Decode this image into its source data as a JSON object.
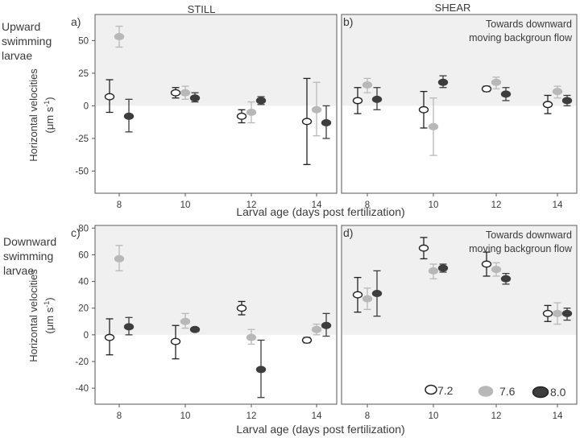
{
  "column_titles": {
    "still": "STILL",
    "shear": "SHEAR"
  },
  "row_labels": {
    "upward": [
      "Upward",
      "swimming",
      "larvae"
    ],
    "downward": [
      "Downward",
      "swimming",
      "larvae"
    ]
  },
  "ylabel": "Horizontal velocities",
  "ylabel_unit": {
    "mu": "(μm s",
    "sup": "-1",
    "close": ")"
  },
  "xlabel": "Larval age (days post fertilization)",
  "annotation": [
    "Towards downward",
    "moving backgroun flow"
  ],
  "legend": [
    {
      "label": "7.2",
      "fill": "#ffffff",
      "stroke": "#222222"
    },
    {
      "label": "7.6",
      "fill": "#b8b8b8",
      "stroke": "#b8b8b8"
    },
    {
      "label": "8.0",
      "fill": "#3d3d3d",
      "stroke": "#222222"
    }
  ],
  "colors": {
    "7.2": "#222222",
    "7.6": "#b8b8b8",
    "8.0": "#3d3d3d",
    "shade": "#f0f0f0",
    "frame": "#555555"
  },
  "chart_data": [
    {
      "panel": "a)",
      "type": "scatter",
      "title": "STILL",
      "group": "Upward swimming larvae",
      "xlabel": "",
      "ylabel": "Horizontal velocities (μm s-1)",
      "x_ticks": [
        8,
        10,
        12,
        14
      ],
      "y_ticks": [
        -50,
        -25,
        0,
        25,
        50
      ],
      "y_tick_labels": [
        "-50",
        "-25",
        "0",
        "25",
        "50"
      ],
      "ylim": [
        -67,
        70
      ],
      "series": [
        {
          "name": "7.2",
          "values": [
            7,
            10,
            -8,
            -12
          ],
          "lower": [
            -5,
            6,
            -13,
            -45
          ],
          "upper": [
            20,
            14,
            -3,
            21
          ]
        },
        {
          "name": "7.6",
          "values": [
            53,
            10,
            -5,
            -3
          ],
          "lower": [
            45,
            5,
            -13,
            -23
          ],
          "upper": [
            61,
            15,
            3,
            18
          ]
        },
        {
          "name": "8.0",
          "values": [
            -8,
            6,
            4,
            -13
          ],
          "lower": [
            -20,
            3,
            1,
            -25
          ],
          "upper": [
            5,
            10,
            7,
            0
          ]
        }
      ]
    },
    {
      "panel": "b)",
      "type": "scatter",
      "title": "SHEAR",
      "group": "Upward swimming larvae",
      "xlabel": "Larval age (days post fertilization)",
      "x_ticks": [
        8,
        10,
        12,
        14
      ],
      "ylim": [
        -67,
        70
      ],
      "series": [
        {
          "name": "7.2",
          "values": [
            4,
            -3,
            13,
            1
          ],
          "lower": [
            -6,
            -17,
            11,
            -6
          ],
          "upper": [
            14,
            11,
            15,
            8
          ]
        },
        {
          "name": "7.6",
          "values": [
            16,
            -16,
            18,
            11
          ],
          "lower": [
            10,
            -38,
            13,
            6
          ],
          "upper": [
            21,
            6,
            22,
            15
          ]
        },
        {
          "name": "8.0",
          "values": [
            5,
            18,
            9,
            4
          ],
          "lower": [
            -3,
            14,
            4,
            0
          ],
          "upper": [
            14,
            23,
            14,
            8
          ]
        }
      ]
    },
    {
      "panel": "c)",
      "type": "scatter",
      "title": "",
      "group": "Downward swimming larvae",
      "xlabel": "Larval age (days post fertilization)",
      "ylabel": "Horizontal velocities (μm s-1)",
      "x_ticks": [
        8,
        10,
        12,
        14
      ],
      "y_ticks": [
        -40,
        -20,
        0,
        20,
        40,
        60,
        80
      ],
      "y_tick_labels": [
        "-40",
        "-20",
        "0",
        "20",
        "40",
        "60",
        "80"
      ],
      "ylim": [
        -52,
        82
      ],
      "series": [
        {
          "name": "7.2",
          "values": [
            -2,
            -5,
            20,
            -4
          ],
          "lower": [
            -15,
            -18,
            15,
            -6
          ],
          "upper": [
            12,
            7,
            25,
            -2
          ]
        },
        {
          "name": "7.6",
          "values": [
            57,
            10,
            -2,
            4
          ],
          "lower": [
            48,
            5,
            -7,
            0
          ],
          "upper": [
            67,
            16,
            4,
            8
          ]
        },
        {
          "name": "8.0",
          "values": [
            6,
            4,
            -26,
            7
          ],
          "lower": [
            0,
            3,
            -47,
            -1
          ],
          "upper": [
            13,
            5,
            -4,
            16
          ]
        }
      ]
    },
    {
      "panel": "d)",
      "type": "scatter",
      "title": "",
      "group": "Downward swimming larvae",
      "xlabel": "Larval age (days post fertilization)",
      "x_ticks": [
        8,
        10,
        12,
        14
      ],
      "ylim": [
        -52,
        82
      ],
      "series": [
        {
          "name": "7.2",
          "values": [
            30,
            65,
            53,
            16
          ],
          "lower": [
            17,
            57,
            44,
            10
          ],
          "upper": [
            43,
            73,
            62,
            22
          ]
        },
        {
          "name": "7.6",
          "values": [
            27,
            48,
            49,
            16
          ],
          "lower": [
            19,
            42,
            44,
            8
          ],
          "upper": [
            35,
            53,
            54,
            24
          ]
        },
        {
          "name": "8.0",
          "values": [
            31,
            50,
            42,
            16
          ],
          "lower": [
            14,
            47,
            38,
            11
          ],
          "upper": [
            48,
            53,
            46,
            20
          ]
        }
      ]
    }
  ]
}
